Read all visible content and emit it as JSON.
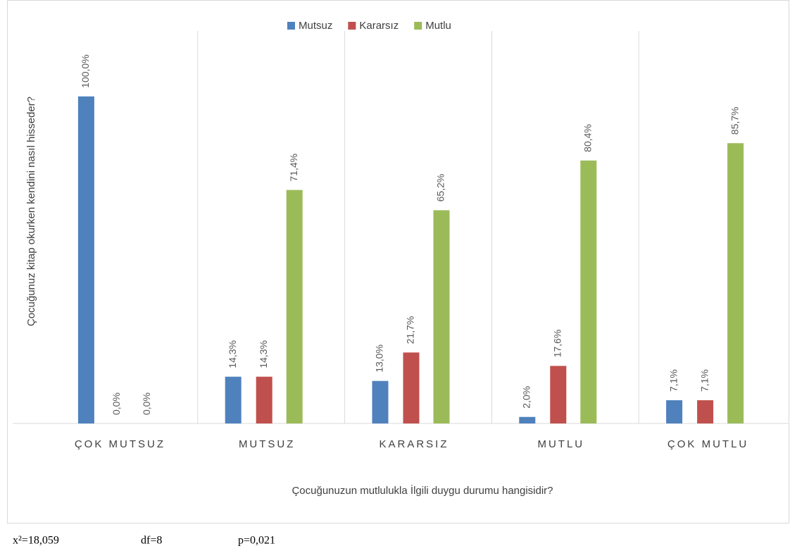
{
  "chart_data": {
    "type": "bar",
    "y_axis_label": "Çocuğunuz kitap okurken kendini nasıl hisseder?",
    "x_axis_label": "Çocuğunuzun mutlulukla İlgili duygu durumu hangisidir?",
    "categories": [
      "ÇOK MUTSUZ",
      "MUTSUZ",
      "KARARSIZ",
      "MUTLU",
      "ÇOK MUTLU"
    ],
    "series": [
      {
        "name": "Mutsuz",
        "color": "#4f81bd",
        "values": [
          100,
          14.3,
          13,
          2,
          7.1
        ],
        "value_labels": [
          "100,0%",
          "14,3%",
          "13,0%",
          "2,0%",
          "7,1%"
        ]
      },
      {
        "name": "Kararsız",
        "color": "#c0504d",
        "values": [
          0,
          14.3,
          21.7,
          17.6,
          7.1
        ],
        "value_labels": [
          "0,0%",
          "14,3%",
          "21,7%",
          "17,6%",
          "7,1%"
        ]
      },
      {
        "name": "Mutlu",
        "color": "#9bbb59",
        "values": [
          0,
          71.4,
          65.2,
          80.4,
          85.7
        ],
        "value_labels": [
          "0,0%",
          "71,4%",
          "65,2%",
          "80,4%",
          "85,7%"
        ]
      }
    ],
    "ylim": [
      0,
      120
    ],
    "legend": "top",
    "footnotes": [
      "x²=18,059",
      "df=8",
      "p=0,021"
    ]
  }
}
